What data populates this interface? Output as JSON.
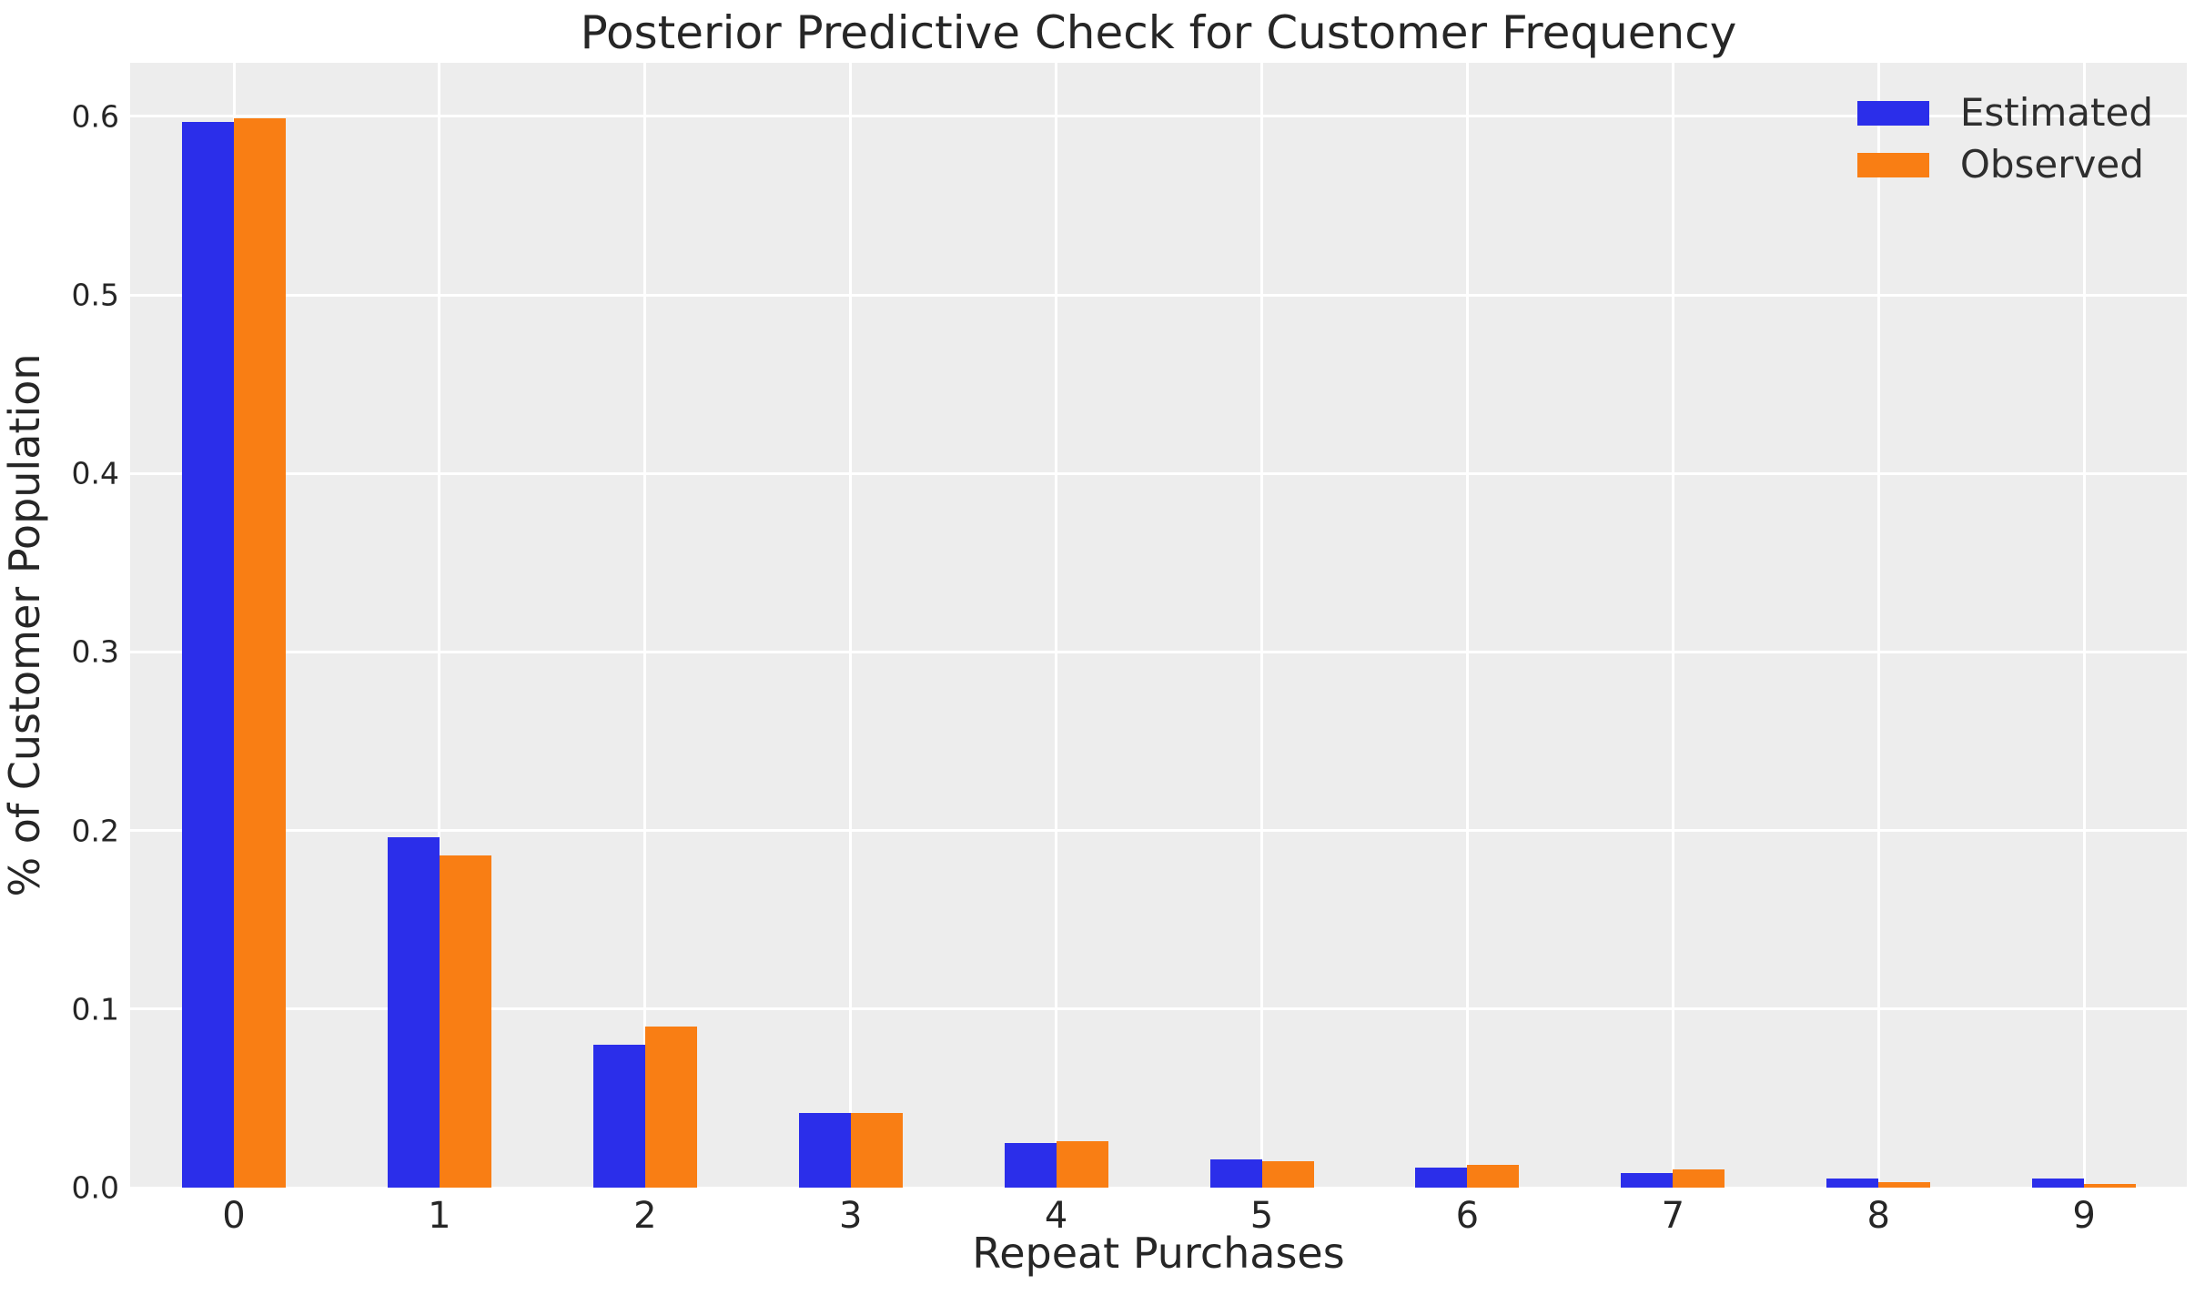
{
  "figure": {
    "background": "#ffffff",
    "plot_background": "#ededed",
    "grid_color": "#ffffff",
    "text_color": "#262626"
  },
  "chart_data": {
    "type": "bar",
    "title": "Posterior Predictive Check for Customer Frequency",
    "xlabel": "Repeat Purchases",
    "ylabel": "% of Customer Population",
    "categories": [
      "0",
      "1",
      "2",
      "3",
      "4",
      "5",
      "6",
      "7",
      "8",
      "9"
    ],
    "series": [
      {
        "name": "Estimated",
        "color": "#2b2eea",
        "values": [
          0.597,
          0.196,
          0.08,
          0.042,
          0.025,
          0.016,
          0.011,
          0.008,
          0.005,
          0.005
        ]
      },
      {
        "name": "Observed",
        "color": "#f97e14",
        "values": [
          0.599,
          0.186,
          0.09,
          0.042,
          0.026,
          0.015,
          0.013,
          0.01,
          0.003,
          0.002
        ]
      }
    ],
    "yticks": [
      "0.0",
      "0.1",
      "0.2",
      "0.3",
      "0.4",
      "0.5",
      "0.6"
    ],
    "ylim": [
      0,
      0.63
    ],
    "grid": true,
    "legend_position": "upper right"
  }
}
